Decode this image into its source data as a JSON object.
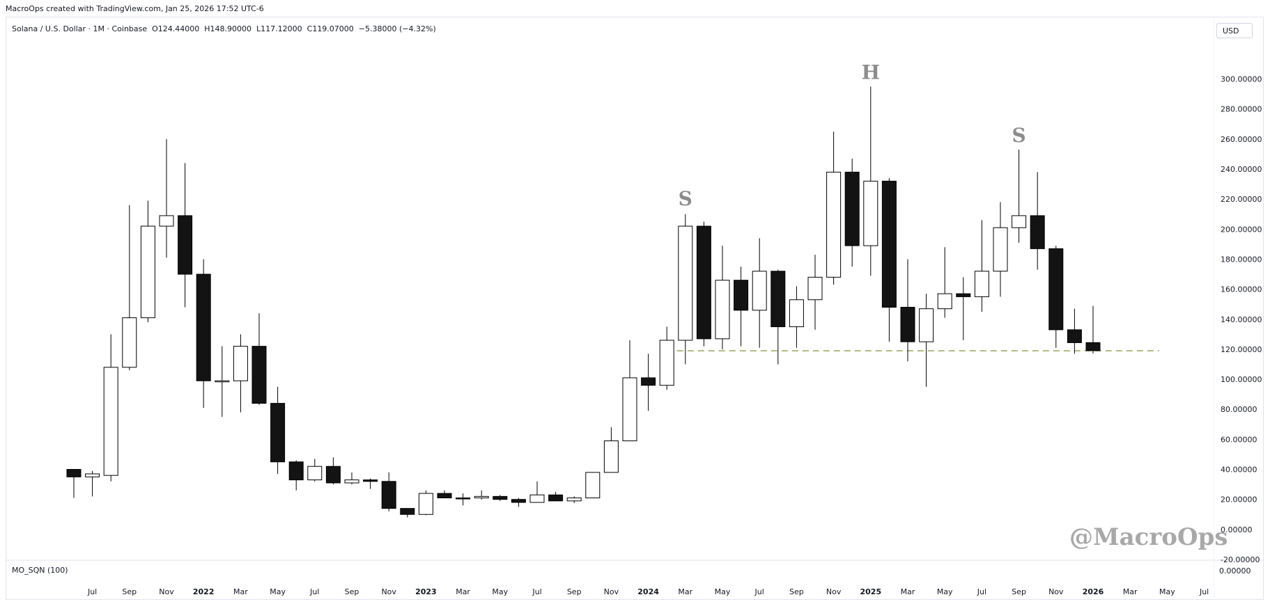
{
  "header": {
    "attribution": "MacroOps created with TradingView.com, Jan 25, 2026 17:52 UTC-6"
  },
  "legend": {
    "text": "Solana / U.S. Dollar · 1M · Coinbase  O124.44000  H148.90000  L117.12000  C119.07000  −5.38000 (−4.32%)"
  },
  "currency_label": "USD",
  "indicator": {
    "name": "MO_SQN (100)",
    "value": "0.00000"
  },
  "watermark": "@MacroOps",
  "colors": {
    "bear": "#131313",
    "bull": "#ffffff",
    "outline": "#000000",
    "support_line": "#9aa35a",
    "pattern_label": "#8c8c8c"
  },
  "chart_data": {
    "type": "candlestick",
    "title": "Solana / U.S. Dollar · 1M · Coinbase",
    "ylim": [
      -20,
      310
    ],
    "y_ticks": [
      "-20.00000",
      "0.00000",
      "20.00000",
      "40.00000",
      "60.00000",
      "80.00000",
      "100.00000",
      "120.00000",
      "140.00000",
      "160.00000",
      "180.00000",
      "200.00000",
      "220.00000",
      "240.00000",
      "260.00000",
      "280.00000",
      "300.00000"
    ],
    "x_ticks": [
      "Jul",
      "Sep",
      "Nov",
      "2022",
      "Mar",
      "May",
      "Jul",
      "Sep",
      "Nov",
      "2023",
      "Mar",
      "May",
      "Jul",
      "Sep",
      "Nov",
      "2024",
      "Mar",
      "May",
      "Jul",
      "Sep",
      "Nov",
      "2025",
      "Mar",
      "May",
      "Jul",
      "Sep",
      "Nov",
      "2026",
      "Mar",
      "May",
      "Jul"
    ],
    "x_tick_bold": [
      "2022",
      "2023",
      "2024",
      "2025",
      "2026"
    ],
    "months": [
      "Jun 2021",
      "Jul 2021",
      "Aug 2021",
      "Sep 2021",
      "Oct 2021",
      "Nov 2021",
      "Dec 2021",
      "Jan 2022",
      "Feb 2022",
      "Mar 2022",
      "Apr 2022",
      "May 2022",
      "Jun 2022",
      "Jul 2022",
      "Aug 2022",
      "Sep 2022",
      "Oct 2022",
      "Nov 2022",
      "Dec 2022",
      "Jan 2023",
      "Feb 2023",
      "Mar 2023",
      "Apr 2023",
      "May 2023",
      "Jun 2023",
      "Jul 2023",
      "Aug 2023",
      "Sep 2023",
      "Oct 2023",
      "Nov 2023",
      "Dec 2023",
      "Jan 2024",
      "Feb 2024",
      "Mar 2024",
      "Apr 2024",
      "May 2024",
      "Jun 2024",
      "Jul 2024",
      "Aug 2024",
      "Sep 2024",
      "Oct 2024",
      "Nov 2024",
      "Dec 2024",
      "Jan 2025",
      "Feb 2025",
      "Mar 2025",
      "Apr 2025",
      "May 2025",
      "Jun 2025",
      "Jul 2025",
      "Aug 2025",
      "Sep 2025",
      "Oct 2025",
      "Nov 2025",
      "Dec 2025",
      "Jan 2026"
    ],
    "candles": [
      {
        "o": 40,
        "h": 40,
        "l": 21,
        "c": 35
      },
      {
        "o": 35,
        "h": 39,
        "l": 22,
        "c": 37
      },
      {
        "o": 36,
        "h": 130,
        "l": 32,
        "c": 108
      },
      {
        "o": 108,
        "h": 216,
        "l": 106,
        "c": 141
      },
      {
        "o": 141,
        "h": 219,
        "l": 138,
        "c": 202
      },
      {
        "o": 202,
        "h": 260,
        "l": 181,
        "c": 209
      },
      {
        "o": 209,
        "h": 244,
        "l": 148,
        "c": 170
      },
      {
        "o": 170,
        "h": 180,
        "l": 81,
        "c": 99
      },
      {
        "o": 99,
        "h": 122,
        "l": 75,
        "c": 99
      },
      {
        "o": 99,
        "h": 130,
        "l": 78,
        "c": 122
      },
      {
        "o": 122,
        "h": 144,
        "l": 83,
        "c": 84
      },
      {
        "o": 84,
        "h": 95,
        "l": 37,
        "c": 45
      },
      {
        "o": 45,
        "h": 46,
        "l": 26,
        "c": 33
      },
      {
        "o": 33,
        "h": 47,
        "l": 32,
        "c": 42
      },
      {
        "o": 42,
        "h": 48,
        "l": 30,
        "c": 31
      },
      {
        "o": 31,
        "h": 38,
        "l": 30,
        "c": 33
      },
      {
        "o": 33,
        "h": 34,
        "l": 27,
        "c": 32
      },
      {
        "o": 32,
        "h": 38,
        "l": 12,
        "c": 14
      },
      {
        "o": 14,
        "h": 14,
        "l": 8,
        "c": 10
      },
      {
        "o": 10,
        "h": 26,
        "l": 9.5,
        "c": 24
      },
      {
        "o": 24,
        "h": 26,
        "l": 21,
        "c": 21
      },
      {
        "o": 21,
        "h": 24,
        "l": 16,
        "c": 20.5
      },
      {
        "o": 21,
        "h": 26,
        "l": 20,
        "c": 22
      },
      {
        "o": 22,
        "h": 23,
        "l": 19,
        "c": 20
      },
      {
        "o": 20,
        "h": 21,
        "l": 15,
        "c": 18
      },
      {
        "o": 18,
        "h": 32,
        "l": 18,
        "c": 23
      },
      {
        "o": 23,
        "h": 25,
        "l": 19,
        "c": 19
      },
      {
        "o": 19,
        "h": 22,
        "l": 17.5,
        "c": 21
      },
      {
        "o": 21,
        "h": 38,
        "l": 21,
        "c": 38
      },
      {
        "o": 38,
        "h": 68,
        "l": 38,
        "c": 59
      },
      {
        "o": 59,
        "h": 126,
        "l": 59,
        "c": 101
      },
      {
        "o": 101,
        "h": 117,
        "l": 79,
        "c": 96
      },
      {
        "o": 96,
        "h": 135,
        "l": 93,
        "c": 126
      },
      {
        "o": 126,
        "h": 210,
        "l": 110,
        "c": 202
      },
      {
        "o": 202,
        "h": 205,
        "l": 122,
        "c": 127
      },
      {
        "o": 127,
        "h": 189,
        "l": 120,
        "c": 166
      },
      {
        "o": 166,
        "h": 175,
        "l": 122,
        "c": 146
      },
      {
        "o": 146,
        "h": 194,
        "l": 121,
        "c": 172
      },
      {
        "o": 172,
        "h": 173,
        "l": 110,
        "c": 135
      },
      {
        "o": 135,
        "h": 162,
        "l": 121,
        "c": 153
      },
      {
        "o": 153,
        "h": 183,
        "l": 133,
        "c": 168
      },
      {
        "o": 168,
        "h": 265,
        "l": 163,
        "c": 238
      },
      {
        "o": 238,
        "h": 247,
        "l": 175,
        "c": 189
      },
      {
        "o": 189,
        "h": 295,
        "l": 169,
        "c": 232
      },
      {
        "o": 232,
        "h": 234,
        "l": 125,
        "c": 148
      },
      {
        "o": 148,
        "h": 180,
        "l": 112,
        "c": 125
      },
      {
        "o": 125,
        "h": 157,
        "l": 95,
        "c": 147
      },
      {
        "o": 147,
        "h": 188,
        "l": 141,
        "c": 157
      },
      {
        "o": 157,
        "h": 168,
        "l": 126,
        "c": 155
      },
      {
        "o": 155,
        "h": 206,
        "l": 145,
        "c": 172
      },
      {
        "o": 172,
        "h": 218,
        "l": 155,
        "c": 201
      },
      {
        "o": 201,
        "h": 253,
        "l": 191,
        "c": 209
      },
      {
        "o": 209,
        "h": 238,
        "l": 173,
        "c": 187
      },
      {
        "o": 187,
        "h": 189,
        "l": 121,
        "c": 133
      },
      {
        "o": 133,
        "h": 147,
        "l": 117,
        "c": 124.4
      },
      {
        "o": 124.44,
        "h": 148.9,
        "l": 117.12,
        "c": 119.07
      }
    ],
    "support_level": 119,
    "annotations": [
      {
        "text": "S",
        "month": "Mar 2024",
        "price": 216
      },
      {
        "text": "H",
        "month": "Jan 2025",
        "price": 300
      },
      {
        "text": "S",
        "month": "Sep 2025",
        "price": 258
      }
    ]
  }
}
